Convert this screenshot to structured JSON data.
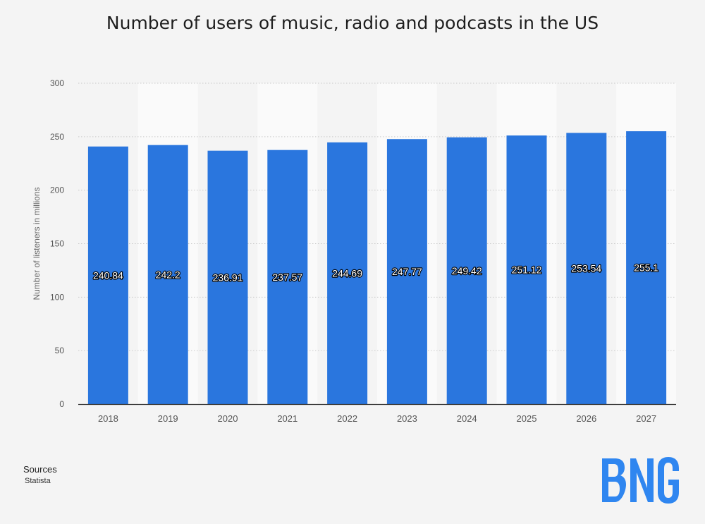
{
  "title": "Number of users of music, radio and podcasts in the US",
  "sources_label": "Sources",
  "sources_value": "Statista",
  "logo_text": "BNG",
  "colors": {
    "bar": "#2a76de",
    "band": "#fafafa",
    "logo": "#2f86f0"
  },
  "chart_data": {
    "type": "bar",
    "title": "Number of users of music, radio and podcasts in the US",
    "xlabel": "",
    "ylabel": "Number of listeners in millions",
    "categories": [
      "2018",
      "2019",
      "2020",
      "2021",
      "2022",
      "2023",
      "2024",
      "2025",
      "2026",
      "2027"
    ],
    "values": [
      240.84,
      242.2,
      236.91,
      237.57,
      244.69,
      247.77,
      249.42,
      251.12,
      253.54,
      255.1
    ],
    "value_labels": [
      "240.84",
      "242.2",
      "236.91",
      "237.57",
      "244.69",
      "247.77",
      "249.42",
      "251.12",
      "253.54",
      "255.1"
    ],
    "ylim": [
      0,
      300
    ],
    "yticks": [
      0,
      50,
      100,
      150,
      200,
      250,
      300
    ],
    "ytick_labels": [
      "0",
      "50",
      "100",
      "150",
      "200",
      "250",
      "300"
    ],
    "grid": true,
    "legend": "none"
  }
}
